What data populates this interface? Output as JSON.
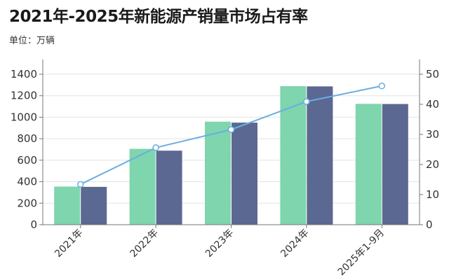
{
  "chart_data": {
    "type": "bar",
    "title": "2021年-2025年新能源产销量市场占有率",
    "subtitle": "单位：万辆",
    "categories": [
      "2021年",
      "2022年",
      "2023年",
      "2024年",
      "2025年1-9月"
    ],
    "series": [
      {
        "type": "bar",
        "axis": "left",
        "color": "#7fd5ad",
        "values": [
          354.5,
          705.8,
          958.7,
          1288.8,
          1124.3
        ]
      },
      {
        "type": "bar",
        "axis": "left",
        "color": "#5b6891",
        "values": [
          352.1,
          688.7,
          949.5,
          1286.6,
          1122.8
        ]
      },
      {
        "type": "line",
        "axis": "right",
        "color": "#6aaee2",
        "values": [
          13.4,
          25.6,
          31.6,
          40.9,
          46.1
        ]
      }
    ],
    "y_left": {
      "range": [
        0,
        1400
      ],
      "ticks": [
        0,
        200,
        400,
        600,
        800,
        1000,
        1200,
        1400
      ]
    },
    "y_right": {
      "range": [
        0,
        50
      ],
      "ticks": [
        0,
        10,
        20,
        30,
        40,
        50
      ]
    },
    "grid": true,
    "legend": "none"
  }
}
